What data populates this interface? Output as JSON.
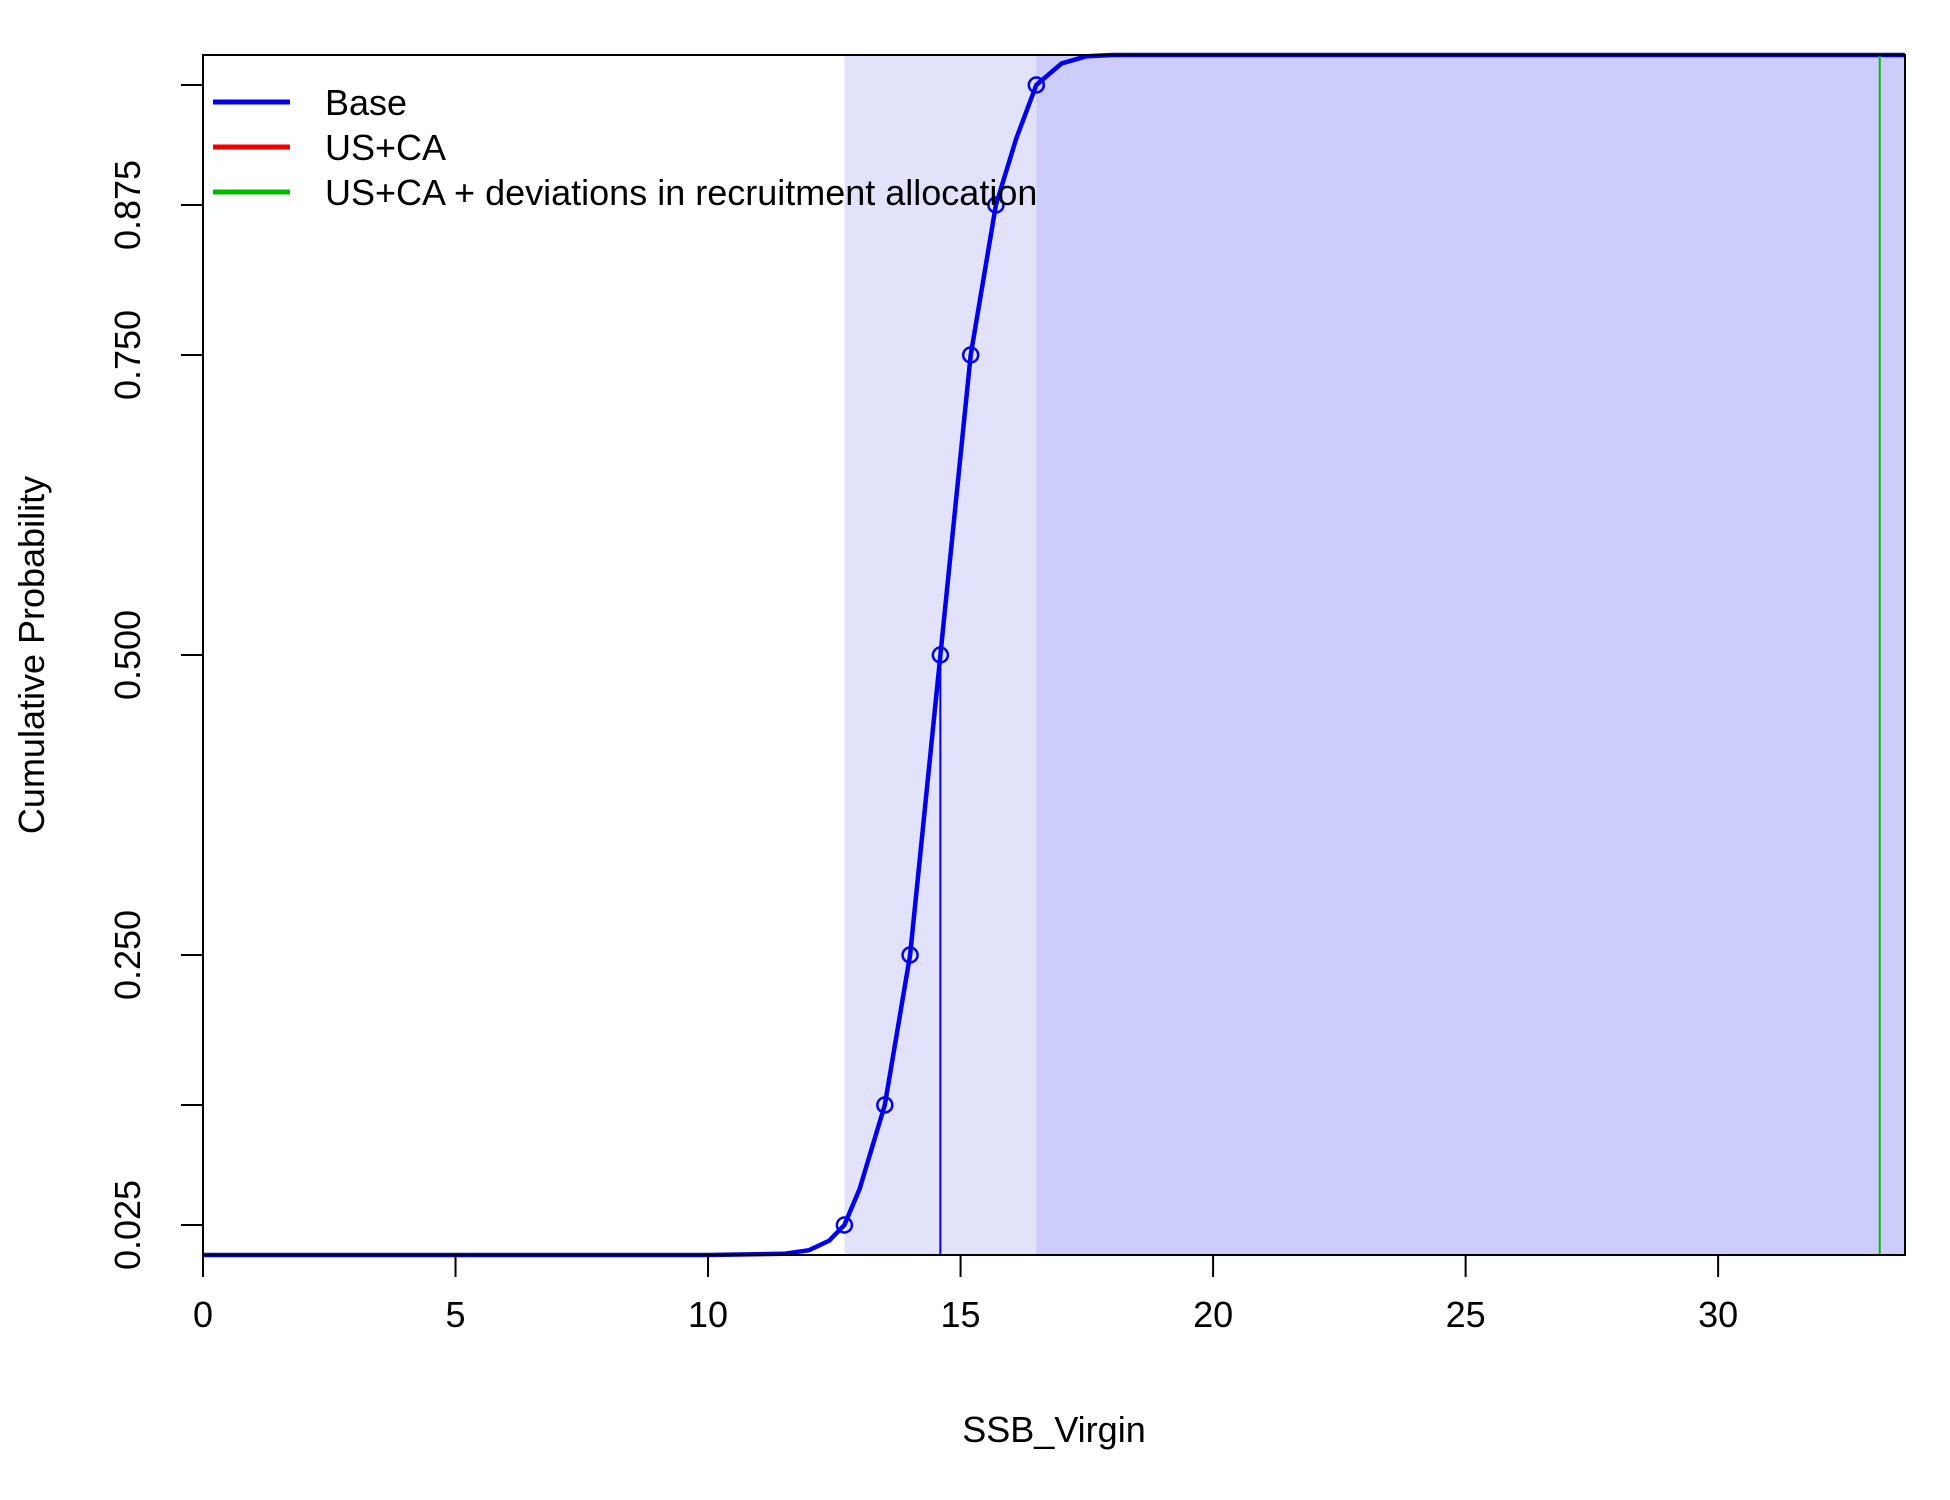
{
  "chart_data": {
    "type": "line",
    "xlabel": "SSB_Virgin",
    "ylabel": "Cumulative Probability",
    "xlim": [
      0,
      33.7
    ],
    "ylim": [
      0,
      1.0
    ],
    "x_ticks": [
      0,
      5,
      10,
      15,
      20,
      25,
      30
    ],
    "x_tick_labels": [
      "0",
      "5",
      "10",
      "15",
      "20",
      "25",
      "30"
    ],
    "y_ticks": [
      0.025,
      0.125,
      0.25,
      0.5,
      0.75,
      0.875,
      0.975
    ],
    "y_tick_labels": [
      "0.025",
      "",
      "0.250",
      "0.500",
      "0.750",
      "0.875",
      ""
    ],
    "grid": false,
    "legend_position": "top-left",
    "colors": {
      "Base": "#0000ee",
      "US+CA": "#ee0000",
      "US+CA + deviations in recruitment allocation": "#00bb00",
      "band_outer": "#e2e2fb",
      "band_inner": "#cdcdfb"
    },
    "series": [
      {
        "name": "Base",
        "cdf": {
          "x": [
            0,
            5,
            10,
            11.5,
            12.0,
            12.4,
            12.7,
            13.0,
            13.5,
            14.0,
            14.6,
            15.2,
            15.7,
            16.1,
            16.5,
            17.0,
            17.5,
            18.0,
            33.7
          ],
          "y": [
            0.0,
            0.0,
            0.0,
            0.001,
            0.004,
            0.012,
            0.025,
            0.055,
            0.125,
            0.25,
            0.5,
            0.75,
            0.875,
            0.93,
            0.975,
            0.993,
            0.999,
            1.0,
            1.0
          ]
        },
        "quantile_points": {
          "x": [
            12.7,
            13.5,
            14.0,
            14.6,
            15.2,
            15.7,
            16.5
          ],
          "y": [
            0.025,
            0.125,
            0.25,
            0.5,
            0.75,
            0.875,
            0.975
          ]
        },
        "median": 14.6
      },
      {
        "name": "US+CA",
        "cdf": null
      },
      {
        "name": "US+CA + deviations in recruitment allocation",
        "vline": 33.2
      }
    ],
    "shaded_bands": [
      {
        "from": 12.7,
        "to": 33.7,
        "color": "band_outer"
      },
      {
        "from": 16.5,
        "to": 33.7,
        "color": "band_inner"
      }
    ]
  }
}
